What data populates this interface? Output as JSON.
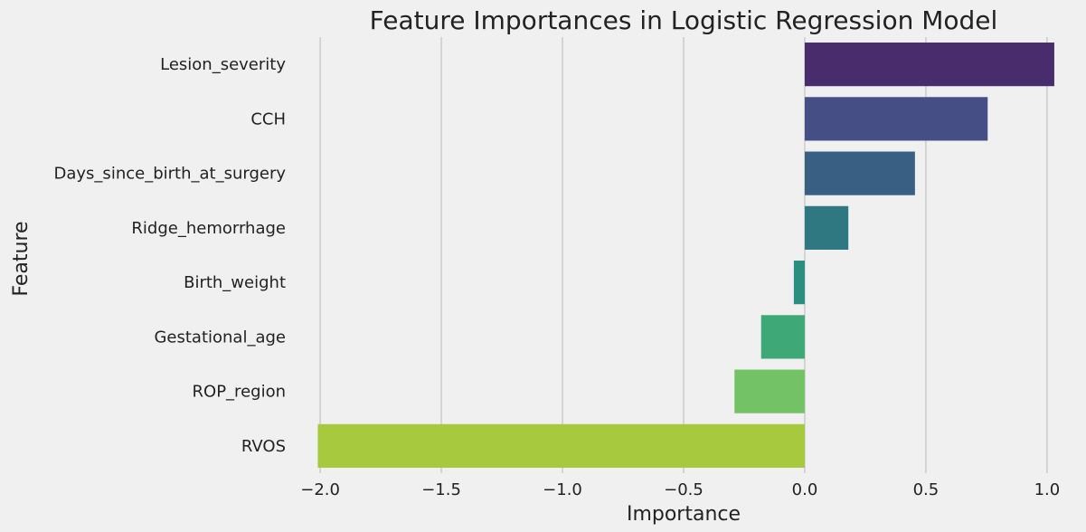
{
  "chart_data": {
    "type": "bar",
    "orientation": "horizontal",
    "title": "Feature Importances in Logistic Regression Model",
    "xlabel": "Importance",
    "ylabel": "Feature",
    "categories": [
      "Lesion_severity",
      "CCH",
      "Days_since_birth_at_surgery",
      "Ridge_hemorrhage",
      "Birth_weight",
      "Gestational_age",
      "ROP_region",
      "RVOS"
    ],
    "values": [
      1.03,
      0.755,
      0.455,
      0.18,
      -0.045,
      -0.18,
      -0.29,
      -2.01
    ],
    "colors": [
      "#482c6c",
      "#454f85",
      "#395f83",
      "#2f7781",
      "#2b8f80",
      "#3fa877",
      "#74c266",
      "#a6c93e"
    ],
    "xlim": [
      -2.09,
      1.09
    ],
    "xticks": [
      -2.0,
      -1.5,
      -1.0,
      -0.5,
      0.0,
      0.5,
      1.0
    ],
    "xtick_labels": [
      "−2.0",
      "−1.5",
      "−1.0",
      "−0.5",
      "0.0",
      "0.5",
      "1.0"
    ],
    "grid": "vertical",
    "legend": "none"
  }
}
